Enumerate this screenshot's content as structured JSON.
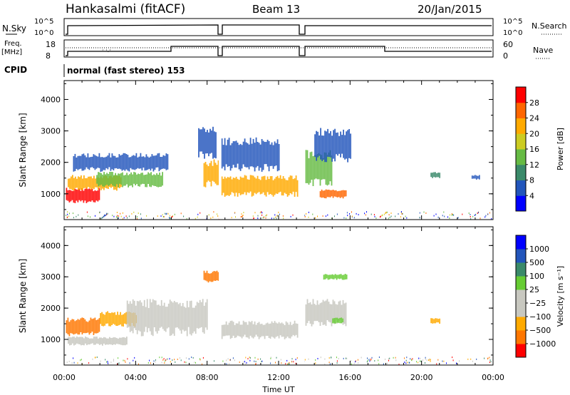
{
  "header": {
    "station": "Hankasalmi (fitACF)",
    "beam": "Beam 13",
    "date": "20/Jan/2015"
  },
  "top_panels": {
    "nsky_label": "N.Sky",
    "nsky_ticks": [
      "10^5",
      "10^0"
    ],
    "nsearch_label": "N.Search",
    "freq_label_1": "Freq.",
    "freq_label_2": "[MHz]",
    "freq_ticks": [
      "18",
      "8"
    ],
    "nave_label": "Nave",
    "nave_ticks": [
      "60",
      "0"
    ],
    "cpid_label": "CPID",
    "cpid_text": "normal (fast stereo) 153"
  },
  "colors": {
    "power_scale": [
      "#0000ff",
      "#2255bb",
      "#3a8a6a",
      "#66bb44",
      "#cccc22",
      "#ffaa00",
      "#ff6600",
      "#ff0000"
    ],
    "velocity_scale": [
      "#ff0000",
      "#ff7700",
      "#ffaa00",
      "#c8c8c0",
      "#c8c8c0",
      "#66cc33",
      "#3a8a6a",
      "#2255bb",
      "#0000ff"
    ]
  },
  "chart_data": [
    {
      "type": "heatmap",
      "panel": "power",
      "ylabel": "Slant Range [km]",
      "xlabel": "Time UT",
      "x_ticks": [
        "00:00",
        "04:00",
        "08:00",
        "12:00",
        "16:00",
        "20:00",
        "00:00"
      ],
      "y_ticks": [
        "1000",
        "2000",
        "3000",
        "4000"
      ],
      "xlim": [
        0,
        24
      ],
      "ylim": [
        180,
        4600
      ],
      "colorbar_label": "Power [dB]",
      "colorbar_ticks": [
        "4",
        "8",
        "12",
        "16",
        "20",
        "24",
        "28"
      ],
      "regions": [
        {
          "t0": 0.1,
          "t1": 2.0,
          "r0": 700,
          "r1": 1200,
          "level": 7
        },
        {
          "t0": 0.2,
          "t1": 3.2,
          "r0": 1100,
          "r1": 1600,
          "level": 5
        },
        {
          "t0": 1.8,
          "t1": 5.5,
          "r0": 1200,
          "r1": 1700,
          "level": 3
        },
        {
          "t0": 0.5,
          "t1": 5.8,
          "r0": 1700,
          "r1": 2300,
          "level": 1
        },
        {
          "t0": 7.8,
          "t1": 8.6,
          "r0": 1200,
          "r1": 2100,
          "level": 5
        },
        {
          "t0": 7.5,
          "t1": 8.5,
          "r0": 2100,
          "r1": 3200,
          "level": 1
        },
        {
          "t0": 8.8,
          "t1": 13.1,
          "r0": 900,
          "r1": 1600,
          "level": 5
        },
        {
          "t0": 8.8,
          "t1": 12.0,
          "r0": 1700,
          "r1": 2800,
          "level": 1
        },
        {
          "t0": 13.5,
          "t1": 15.0,
          "r0": 1200,
          "r1": 2400,
          "level": 3
        },
        {
          "t0": 14.3,
          "t1": 15.8,
          "r0": 850,
          "r1": 1150,
          "level": 6
        },
        {
          "t0": 14.0,
          "t1": 16.0,
          "r0": 2000,
          "r1": 3100,
          "level": 1
        },
        {
          "t0": 20.5,
          "t1": 21.0,
          "r0": 1500,
          "r1": 1700,
          "level": 2
        },
        {
          "t0": 22.8,
          "t1": 23.2,
          "r0": 1450,
          "r1": 1600,
          "level": 1
        }
      ]
    },
    {
      "type": "heatmap",
      "panel": "velocity",
      "ylabel": "Slant Range [km]",
      "xlabel": "Time UT",
      "x_ticks": [
        "00:00",
        "04:00",
        "08:00",
        "12:00",
        "16:00",
        "20:00",
        "00:00"
      ],
      "y_ticks": [
        "1000",
        "2000",
        "3000",
        "4000"
      ],
      "xlim": [
        0,
        24
      ],
      "ylim": [
        180,
        4600
      ],
      "colorbar_label": "Velocity [m s⁻¹]",
      "colorbar_ticks": [
        "1000",
        "500",
        "100",
        "25",
        "−25",
        "−100",
        "−500",
        "−1000"
      ],
      "regions": [
        {
          "t0": 0.1,
          "t1": 2.0,
          "r0": 1100,
          "r1": 1700,
          "level": 1
        },
        {
          "t0": 2.0,
          "t1": 4.0,
          "r0": 1400,
          "r1": 1900,
          "level": 2
        },
        {
          "t0": 0.2,
          "t1": 3.5,
          "r0": 800,
          "r1": 1100,
          "level": 3
        },
        {
          "t0": 3.5,
          "t1": 8.0,
          "r0": 1100,
          "r1": 2300,
          "level": 3
        },
        {
          "t0": 7.8,
          "t1": 8.6,
          "r0": 2800,
          "r1": 3200,
          "level": 1
        },
        {
          "t0": 8.8,
          "t1": 13.1,
          "r0": 1000,
          "r1": 1600,
          "level": 3
        },
        {
          "t0": 13.5,
          "t1": 15.8,
          "r0": 1400,
          "r1": 2300,
          "level": 3
        },
        {
          "t0": 14.5,
          "t1": 15.8,
          "r0": 2900,
          "r1": 3100,
          "level": 5
        },
        {
          "t0": 15.0,
          "t1": 15.6,
          "r0": 1500,
          "r1": 1700,
          "level": 5
        },
        {
          "t0": 20.5,
          "t1": 21.0,
          "r0": 1500,
          "r1": 1700,
          "level": 2
        }
      ]
    }
  ]
}
